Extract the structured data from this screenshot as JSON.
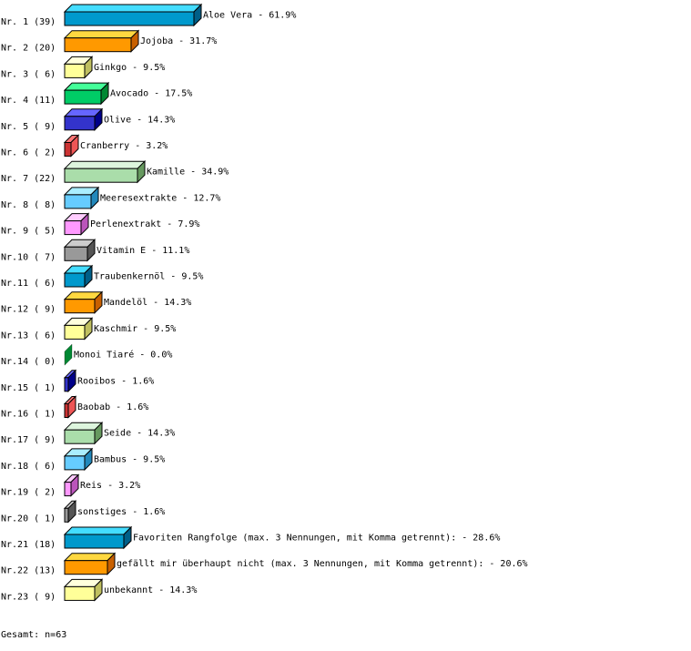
{
  "chart_data": {
    "type": "bar",
    "orientation": "horizontal",
    "style": "3d",
    "rows": [
      {
        "rank": "Nr. 1",
        "count": 39,
        "label": "Aloe Vera",
        "value": 61.9
      },
      {
        "rank": "Nr. 2",
        "count": 20,
        "label": "Jojoba",
        "value": 31.7
      },
      {
        "rank": "Nr. 3",
        "count": 6,
        "label": "Ginkgo",
        "value": 9.5
      },
      {
        "rank": "Nr. 4",
        "count": 11,
        "label": "Avocado",
        "value": 17.5
      },
      {
        "rank": "Nr. 5",
        "count": 9,
        "label": "Olive",
        "value": 14.3
      },
      {
        "rank": "Nr. 6",
        "count": 2,
        "label": "Cranberry",
        "value": 3.2
      },
      {
        "rank": "Nr. 7",
        "count": 22,
        "label": "Kamille",
        "value": 34.9
      },
      {
        "rank": "Nr. 8",
        "count": 8,
        "label": "Meeresextrakte",
        "value": 12.7
      },
      {
        "rank": "Nr. 9",
        "count": 5,
        "label": "Perlenextrakt",
        "value": 7.9
      },
      {
        "rank": "Nr.10",
        "count": 7,
        "label": "Vitamin E",
        "value": 11.1
      },
      {
        "rank": "Nr.11",
        "count": 6,
        "label": "Traubenkernöl",
        "value": 9.5
      },
      {
        "rank": "Nr.12",
        "count": 9,
        "label": "Mandelöl",
        "value": 14.3
      },
      {
        "rank": "Nr.13",
        "count": 6,
        "label": "Kaschmir",
        "value": 9.5
      },
      {
        "rank": "Nr.14",
        "count": 0,
        "label": "Monoi Tiaré",
        "value": 0.0
      },
      {
        "rank": "Nr.15",
        "count": 1,
        "label": "Rooibos",
        "value": 1.6
      },
      {
        "rank": "Nr.16",
        "count": 1,
        "label": "Baobab",
        "value": 1.6
      },
      {
        "rank": "Nr.17",
        "count": 9,
        "label": "Seide",
        "value": 14.3
      },
      {
        "rank": "Nr.18",
        "count": 6,
        "label": "Bambus",
        "value": 9.5
      },
      {
        "rank": "Nr.19",
        "count": 2,
        "label": "Reis",
        "value": 3.2
      },
      {
        "rank": "Nr.20",
        "count": 1,
        "label": "sonstiges",
        "value": 1.6
      },
      {
        "rank": "Nr.21",
        "count": 18,
        "label": "Favoriten Rangfolge (max. 3 Nennungen, mit Komma getrennt):",
        "value": 28.6
      },
      {
        "rank": "Nr.22",
        "count": 13,
        "label": "gefällt mir überhaupt nicht (max. 3 Nennungen, mit Komma getrennt):",
        "value": 20.6
      },
      {
        "rank": "Nr.23",
        "count": 9,
        "label": "unbekannt",
        "value": 14.3
      }
    ],
    "palette": [
      {
        "front": "#0099cc",
        "top": "#44ddff",
        "side": "#005f88"
      },
      {
        "front": "#ff9900",
        "top": "#ffd840",
        "side": "#c86000"
      },
      {
        "front": "#ffff99",
        "top": "#ffffdd",
        "side": "#c0c060"
      },
      {
        "front": "#00cc66",
        "top": "#44ff99",
        "side": "#008833"
      },
      {
        "front": "#3333cc",
        "top": "#6666ff",
        "side": "#000088"
      },
      {
        "front": "#cc3333",
        "top": "#ff7777",
        "side": "#ee5555"
      },
      {
        "front": "#aaddaa",
        "top": "#ddf5dd",
        "side": "#66995f"
      },
      {
        "front": "#66ccff",
        "top": "#aaeeff",
        "side": "#2288bb"
      },
      {
        "front": "#ff99ff",
        "top": "#ffccff",
        "side": "#bb55bb"
      },
      {
        "front": "#999999",
        "top": "#cccccc",
        "side": "#555555"
      }
    ],
    "footer": "Gesamt: n=63"
  }
}
